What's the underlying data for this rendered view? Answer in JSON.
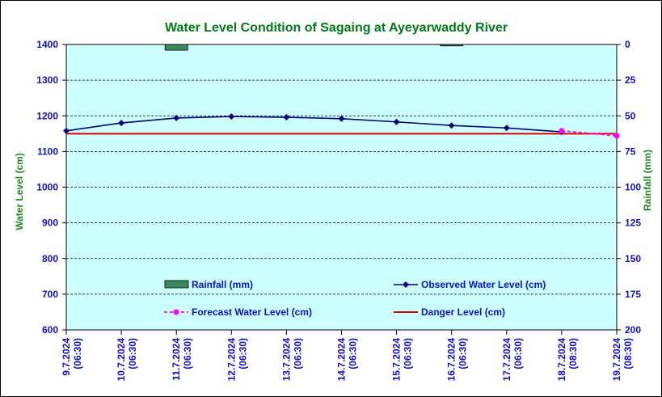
{
  "chart_data": {
    "type": "line",
    "title": "Water Level Condition of Sagaing at Ayeyarwaddy River",
    "ylabel_left": "Water Level (cm)",
    "ylabel_right": "Rainfall (mm)",
    "ylim_left": [
      600,
      1400
    ],
    "ylim_right": [
      200,
      0
    ],
    "yticks_left": [
      "1400",
      "1300",
      "1200",
      "1100",
      "1000",
      "900",
      "800",
      "700",
      "600"
    ],
    "yticks_right": [
      "0",
      "25",
      "50",
      "75",
      "100",
      "125",
      "150",
      "175",
      "200"
    ],
    "categories": [
      [
        "9.7.2024",
        "(06:30)"
      ],
      [
        "10.7.2024",
        "(06:30)"
      ],
      [
        "11.7.2024",
        "(06:30)"
      ],
      [
        "12.7.2024",
        "(06:30)"
      ],
      [
        "13.7.2024",
        "(06:30)"
      ],
      [
        "14.7.2024",
        "(06:30)"
      ],
      [
        "15.7.2024",
        "(06:30)"
      ],
      [
        "16.7.2024",
        "(06:30)"
      ],
      [
        "17.7.2024",
        "(06:30)"
      ],
      [
        "18.7.2024",
        "(08:30)"
      ],
      [
        "19.7.2024",
        "(08:30)"
      ]
    ],
    "series": [
      {
        "name": "Observed Water Level (cm)",
        "kind": "line",
        "axis": "left",
        "color": "#000080",
        "values": [
          1158,
          1180,
          1194,
          1198,
          1196,
          1192,
          1183,
          1173,
          1166,
          1155,
          null
        ]
      },
      {
        "name": "Forecast Water Level (cm)",
        "kind": "dashed-line",
        "axis": "left",
        "color": "#ff00ff",
        "values": [
          null,
          null,
          null,
          null,
          null,
          null,
          null,
          null,
          null,
          1158,
          1144
        ]
      },
      {
        "name": "Danger Level (cm)",
        "kind": "flat-line",
        "axis": "left",
        "color": "#e00000",
        "values": [
          1150,
          1150,
          1150,
          1150,
          1150,
          1150,
          1150,
          1150,
          1150,
          1150,
          1150
        ]
      },
      {
        "name": "Rainfall (mm)",
        "kind": "bar",
        "axis": "right",
        "color": "#3a8a5e",
        "values": [
          0,
          0,
          4,
          0,
          0,
          0,
          0,
          1,
          0,
          0,
          0
        ]
      }
    ],
    "legend": [
      {
        "name": "Rainfall (mm)",
        "marker": "bar"
      },
      {
        "name": "Observed Water Level (cm)",
        "marker": "line-diamond"
      },
      {
        "name": "Forecast Water Level (cm)",
        "marker": "dashed-circle"
      },
      {
        "name": "Danger Level (cm)",
        "marker": "line"
      }
    ],
    "legend_position": "inside-bottom",
    "plot_background": "#ccffff",
    "grid": "horizontal-dashed"
  }
}
